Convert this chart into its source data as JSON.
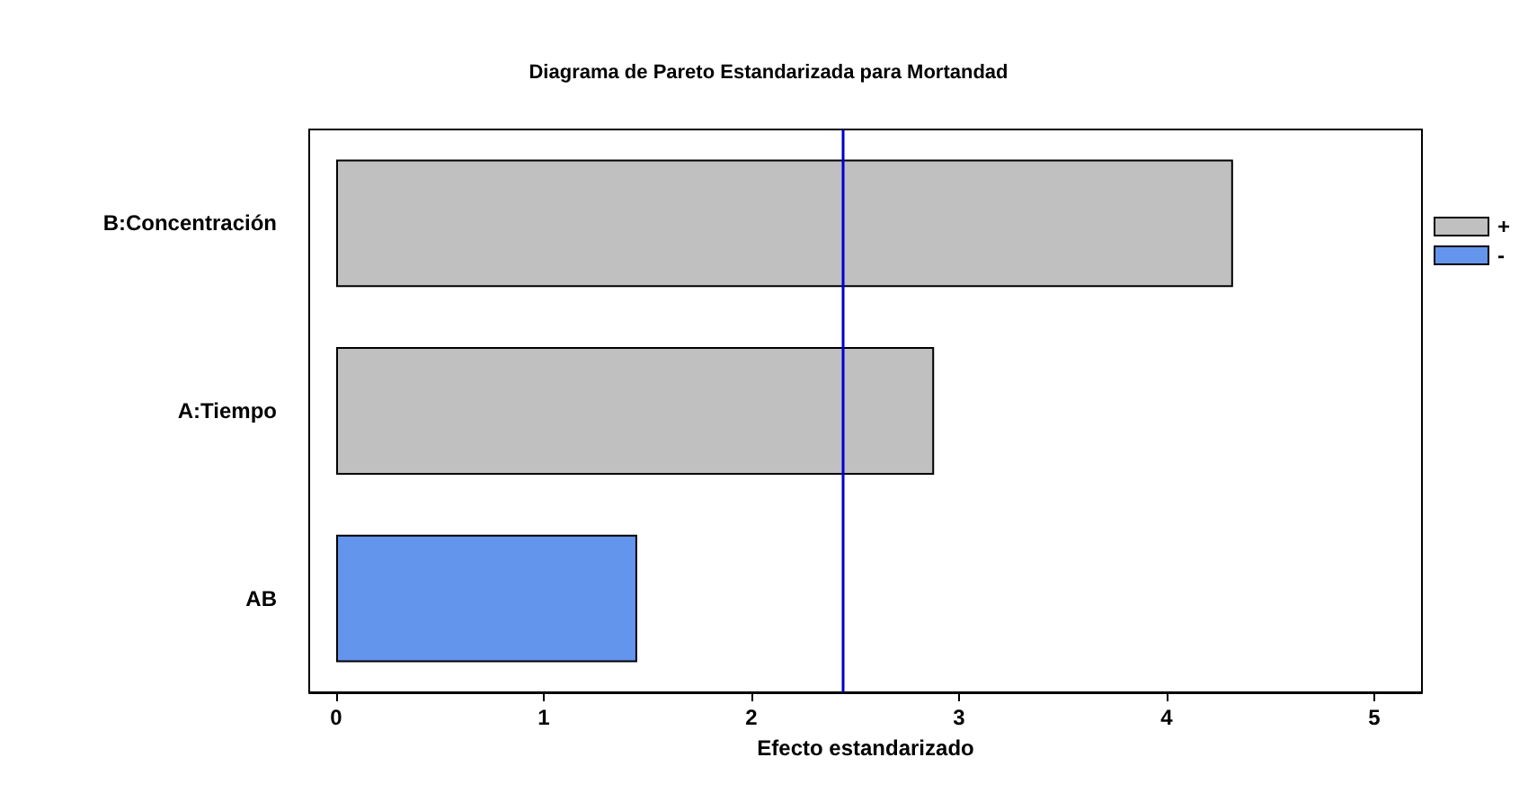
{
  "chart_data": {
    "type": "bar",
    "orientation": "horizontal",
    "title": "Diagrama de Pareto Estandarizada para Mortandad",
    "xlabel": "Efecto estandarizado",
    "categories": [
      "B:Concentración",
      "A:Tiempo",
      "AB"
    ],
    "series": [
      {
        "name": "+",
        "color": "#c0c0c0",
        "values": [
          4.32,
          2.88,
          null
        ]
      },
      {
        "name": "-",
        "color": "#6495ed",
        "values": [
          null,
          null,
          1.45
        ]
      }
    ],
    "xlim": [
      -0.13,
      5.23
    ],
    "xticks": [
      0,
      1,
      2,
      3,
      4,
      5
    ],
    "ref_lines": [
      {
        "axis": "x",
        "value": 2.44,
        "color": "#0000cc"
      }
    ],
    "legend": "right",
    "grid": false
  }
}
